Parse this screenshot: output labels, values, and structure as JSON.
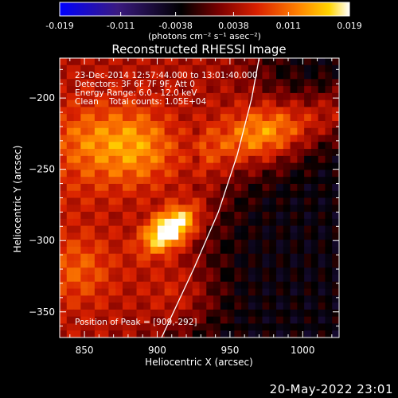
{
  "chart_data": {
    "type": "heatmap",
    "title": "Reconstructed RHESSI Image",
    "xlabel": "Heliocentric X (arcsec)",
    "ylabel": "Heliocentric Y (arcsec)",
    "xlim": [
      833,
      1025
    ],
    "ylim": [
      -368,
      -172
    ],
    "x_ticks": [
      850,
      900,
      950,
      1000
    ],
    "y_ticks": [
      -200,
      -250,
      -300,
      -350
    ],
    "colorbar": {
      "range": [
        -0.019,
        0.019
      ],
      "ticks": [
        "-0.019",
        "-0.011",
        "-0.0038",
        "0.0038",
        "0.011",
        "0.019"
      ],
      "tick_values": [
        -0.019,
        -0.011,
        -0.0038,
        0.0038,
        0.011,
        0.019
      ],
      "unit_label": "(photons cm⁻² s⁻¹ asec⁻²)",
      "colors": [
        "#0000ff",
        "#3a1a80",
        "#000000",
        "#7a0000",
        "#d92000",
        "#ff8000",
        "#ffd500",
        "#ffffff"
      ]
    },
    "annotations": [
      "23-Dec-2014 12:57:44.000 to 13:01:40.000",
      "Detectors: 3F 6F 7F 9F, Att 0",
      "Energy Range: 6.0 - 12.0 keV",
      "Clean    Total counts: 1.05E+04"
    ],
    "peak_label": "Position of Peak = [909,-292]",
    "peak": {
      "x": 909,
      "y": -292,
      "value": 0.019
    },
    "secondary_sources": [
      {
        "x": 885,
        "y": -232,
        "value": 0.008
      },
      {
        "x": 975,
        "y": -223,
        "value": 0.0075
      },
      {
        "x": 850,
        "y": -230,
        "value": 0.006
      },
      {
        "x": 845,
        "y": -320,
        "value": 0.0055
      },
      {
        "x": 920,
        "y": -340,
        "value": 0.005
      }
    ],
    "limb_curve": [
      [
        903,
        -368
      ],
      [
        925,
        -320
      ],
      [
        942,
        -280
      ],
      [
        955,
        -240
      ],
      [
        965,
        -200
      ],
      [
        970,
        -172
      ]
    ]
  },
  "footer": {
    "date": "20-May-2022 23:01"
  }
}
